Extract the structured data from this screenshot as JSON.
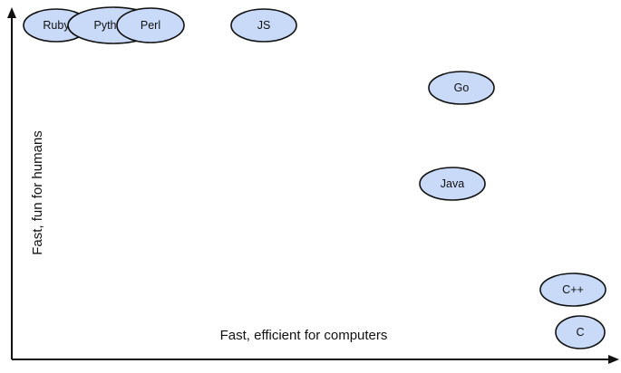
{
  "diagram": {
    "x_axis_label": "Fast, efficient for computers",
    "y_axis_label": "Fast, fun for humans",
    "bubble_fill": "#c9daf8",
    "outline_color": "#111111",
    "languages": [
      {
        "id": "ruby",
        "label": "Ruby"
      },
      {
        "id": "python",
        "label": "Pyth"
      },
      {
        "id": "perl",
        "label": "Perl"
      },
      {
        "id": "js",
        "label": "JS"
      },
      {
        "id": "go",
        "label": "Go"
      },
      {
        "id": "java",
        "label": "Java"
      },
      {
        "id": "cpp",
        "label": "C++"
      },
      {
        "id": "c",
        "label": "C"
      }
    ]
  }
}
